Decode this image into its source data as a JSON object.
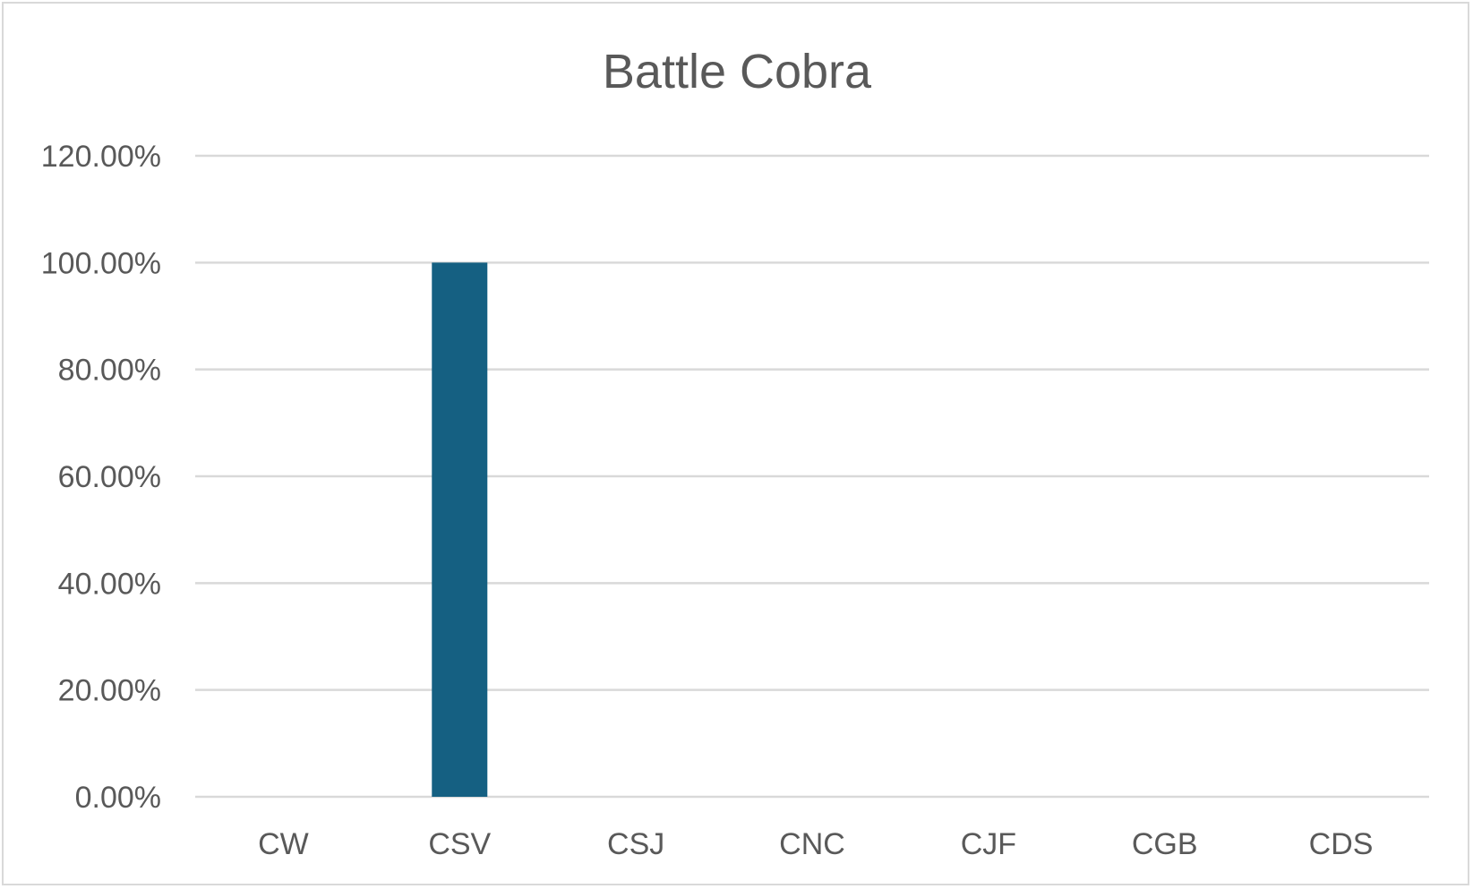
{
  "chart_data": {
    "type": "bar",
    "title": "Battle Cobra",
    "categories": [
      "CW",
      "CSV",
      "CSJ",
      "CNC",
      "CJF",
      "CGB",
      "CDS"
    ],
    "values": [
      0,
      100,
      0,
      0,
      0,
      0,
      0
    ],
    "value_format": "percent_2dp",
    "ylim": [
      0,
      120
    ],
    "yticks": [
      0,
      20,
      40,
      60,
      80,
      100,
      120
    ],
    "ytick_labels": [
      "0.00%",
      "20.00%",
      "40.00%",
      "60.00%",
      "80.00%",
      "100.00%",
      "120.00%"
    ],
    "grid": true,
    "legend": "none",
    "xlabel": "",
    "ylabel": "",
    "bar_color": "#156082"
  }
}
